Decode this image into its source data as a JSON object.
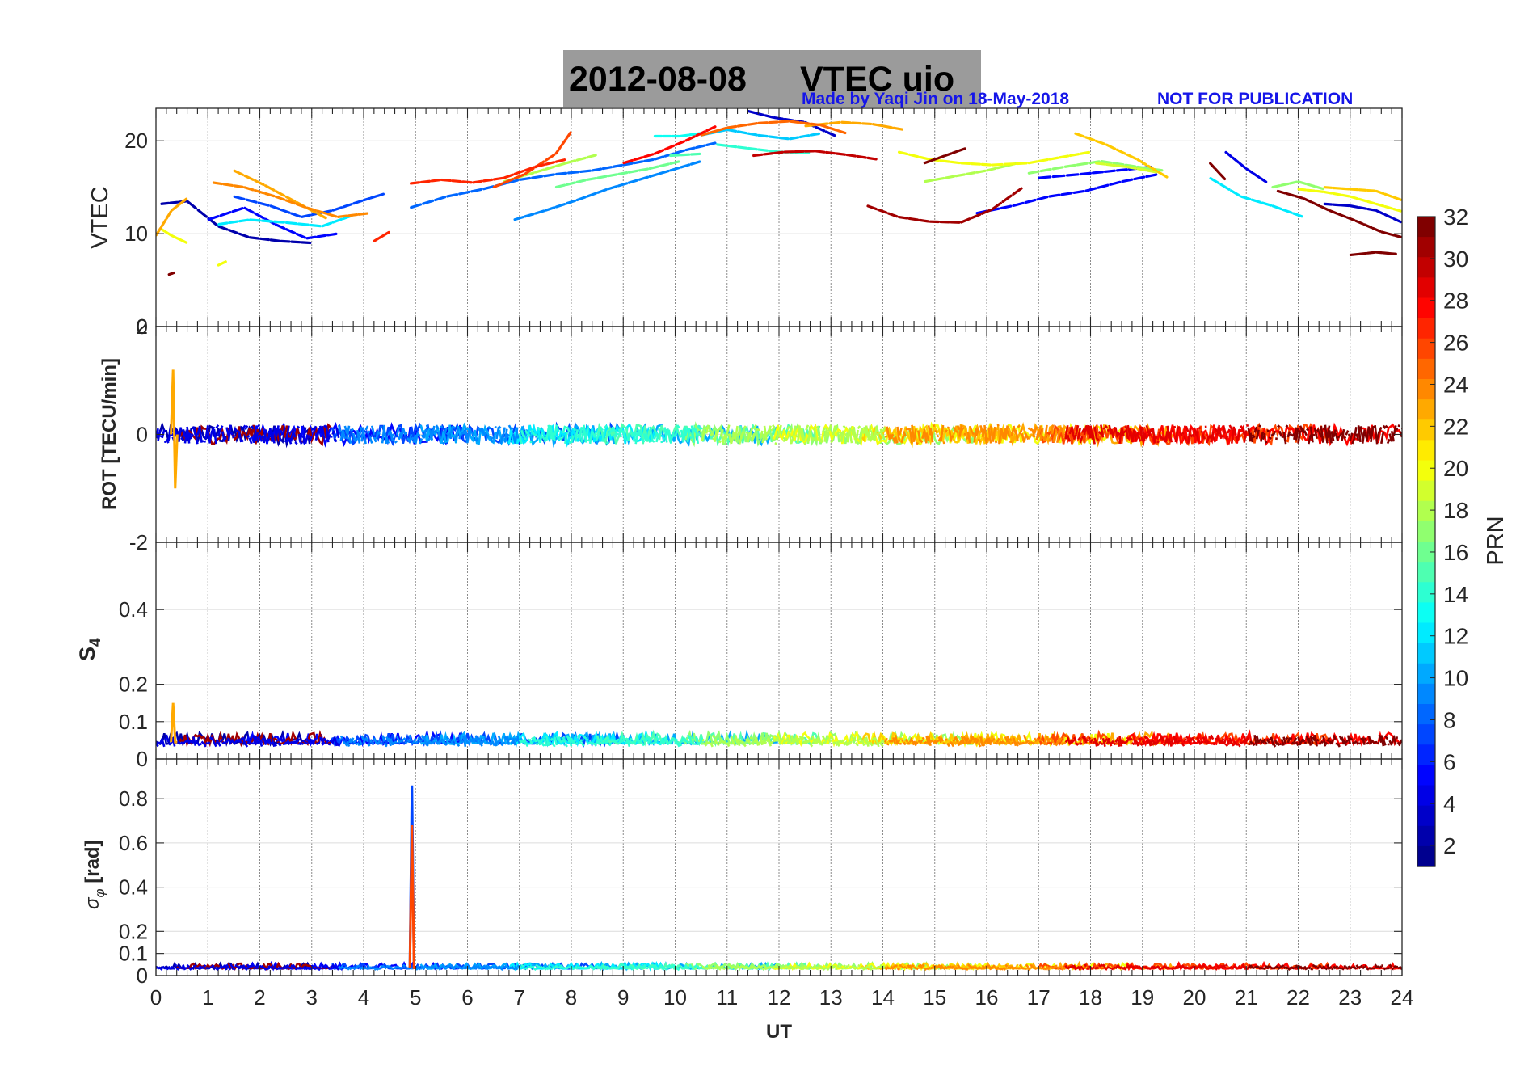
{
  "title": {
    "date": "2012-08-08",
    "main": "VTEC  uio"
  },
  "credits": {
    "made_by": "Made by Yaqi Jin on 18-May-2018",
    "not_for_publication": "NOT FOR PUBLICATION"
  },
  "chart_data": {
    "type": "line",
    "x_label": "UT",
    "x_range": [
      0,
      24
    ],
    "x_ticks": [
      "0",
      "1",
      "2",
      "3",
      "4",
      "5",
      "6",
      "7",
      "8",
      "9",
      "10",
      "11",
      "12",
      "13",
      "14",
      "15",
      "16",
      "17",
      "18",
      "19",
      "20",
      "21",
      "22",
      "23",
      "24"
    ],
    "grid": true,
    "colorbar": {
      "label": "PRN",
      "range": [
        1,
        32
      ],
      "ticks": [
        "2",
        "4",
        "6",
        "8",
        "10",
        "12",
        "14",
        "16",
        "18",
        "20",
        "22",
        "24",
        "26",
        "28",
        "30",
        "32"
      ],
      "placement": "right",
      "colormap": [
        "#00008f",
        "#0000ff",
        "#0080ff",
        "#00ffff",
        "#80ff80",
        "#ffff00",
        "#ff8000",
        "#ff0000",
        "#800000"
      ]
    },
    "panels": [
      {
        "id": "vtec",
        "ylabel": "VTEC",
        "ylim": [
          0,
          23.5
        ],
        "yticks": [
          "0",
          "10",
          "20"
        ],
        "series": [
          {
            "prn": 2,
            "x": [
              0.1,
              0.6,
              1.2,
              1.8,
              2.4,
              3.0
            ],
            "y": [
              13.2,
              13.5,
              10.8,
              9.6,
              9.2,
              9.0
            ]
          },
          {
            "prn": 3,
            "x": [
              11.4,
              11.9,
              12.5,
              13.1
            ],
            "y": [
              23.2,
              22.5,
              22.0,
              20.5
            ]
          },
          {
            "prn": 5,
            "x": [
              1.0,
              1.7,
              2.3,
              2.9,
              3.5
            ],
            "y": [
              11.5,
              12.8,
              11.0,
              9.5,
              10.0
            ]
          },
          {
            "prn": 5,
            "x": [
              15.8,
              16.5,
              17.2,
              17.9,
              18.6,
              19.3
            ],
            "y": [
              12.2,
              13.0,
              14.0,
              14.6,
              15.6,
              16.4
            ]
          },
          {
            "prn": 5,
            "x": [
              17.0,
              17.8,
              18.5,
              19.2
            ],
            "y": [
              16.0,
              16.4,
              16.8,
              17.2
            ]
          },
          {
            "prn": 4,
            "x": [
              20.6,
              21.0,
              21.4
            ],
            "y": [
              18.8,
              17.0,
              15.5
            ]
          },
          {
            "prn": 3,
            "x": [
              22.5,
              23.0,
              23.5,
              24.0
            ],
            "y": [
              13.2,
              13.0,
              12.5,
              11.2
            ]
          },
          {
            "prn": 7,
            "x": [
              1.5,
              2.2,
              2.8,
              3.4,
              4.0,
              4.4
            ],
            "y": [
              14.0,
              13.0,
              11.8,
              12.5,
              13.6,
              14.3
            ]
          },
          {
            "prn": 8,
            "x": [
              4.9,
              5.6,
              6.3,
              7.0,
              7.7,
              8.4,
              9.0,
              9.6,
              10.2,
              10.8
            ],
            "y": [
              12.8,
              14.0,
              14.8,
              15.8,
              16.4,
              16.8,
              17.4,
              18.0,
              19.0,
              19.8
            ]
          },
          {
            "prn": 9,
            "x": [
              6.9,
              7.5,
              8.1,
              8.7,
              9.3,
              9.9,
              10.5
            ],
            "y": [
              11.5,
              12.5,
              13.6,
              14.8,
              15.8,
              16.8,
              17.8
            ]
          },
          {
            "prn": 11,
            "x": [
              10.5,
              11.0,
              11.6,
              12.2,
              12.8
            ],
            "y": [
              20.6,
              21.2,
              20.6,
              20.2,
              20.8
            ]
          },
          {
            "prn": 12,
            "x": [
              1.2,
              1.8,
              2.5,
              3.2,
              3.8
            ],
            "y": [
              11.0,
              11.5,
              11.2,
              10.8,
              12.0
            ]
          },
          {
            "prn": 12,
            "x": [
              20.3,
              20.9,
              21.5,
              22.1
            ],
            "y": [
              16.0,
              14.0,
              13.0,
              11.8
            ]
          },
          {
            "prn": 13,
            "x": [
              9.6,
              10.1,
              10.6
            ],
            "y": [
              20.5,
              20.5,
              20.9
            ]
          },
          {
            "prn": 14,
            "x": [
              10.8,
              11.4,
              12.0,
              12.6
            ],
            "y": [
              19.6,
              19.2,
              18.8,
              18.7
            ]
          },
          {
            "prn": 15,
            "x": [
              9.9,
              10.5
            ],
            "y": [
              18.4,
              18.6
            ]
          },
          {
            "prn": 16,
            "x": [
              7.7,
              8.3,
              8.9,
              9.5,
              10.1
            ],
            "y": [
              15.0,
              15.8,
              16.4,
              17.0,
              17.8
            ]
          },
          {
            "prn": 17,
            "x": [
              16.8,
              17.5,
              18.2,
              18.9,
              19.4
            ],
            "y": [
              16.5,
              17.2,
              17.8,
              17.2,
              16.8
            ]
          },
          {
            "prn": 17,
            "x": [
              21.5,
              22.0,
              22.5
            ],
            "y": [
              15.0,
              15.6,
              14.8
            ]
          },
          {
            "prn": 18,
            "x": [
              14.8,
              15.4,
              16.0,
              16.6
            ],
            "y": [
              15.6,
              16.2,
              16.8,
              17.6
            ]
          },
          {
            "prn": 18,
            "x": [
              6.7,
              7.3,
              7.9,
              8.5
            ],
            "y": [
              15.6,
              16.6,
              17.6,
              18.5
            ]
          },
          {
            "prn": 20,
            "x": [
              14.3,
              14.9,
              15.5,
              16.1,
              16.8,
              17.4,
              18.0
            ],
            "y": [
              18.8,
              18.0,
              17.6,
              17.4,
              17.6,
              18.2,
              18.8
            ]
          },
          {
            "prn": 20,
            "x": [
              22.0,
              22.5,
              23.0,
              23.5,
              24.0
            ],
            "y": [
              14.8,
              14.5,
              14.0,
              13.2,
              12.4
            ]
          },
          {
            "prn": 19,
            "x": [
              18.1,
              18.7,
              19.3
            ],
            "y": [
              17.6,
              17.2,
              16.6
            ]
          },
          {
            "prn": 20,
            "x": [
              0.1,
              0.3,
              0.6
            ],
            "y": [
              10.5,
              9.8,
              9.0
            ]
          },
          {
            "prn": 20,
            "x": [
              1.2,
              1.35
            ],
            "y": [
              6.6,
              7.0
            ]
          },
          {
            "prn": 23,
            "x": [
              0.0,
              0.3,
              0.6
            ],
            "y": [
              9.8,
              12.5,
              13.8
            ]
          },
          {
            "prn": 23,
            "x": [
              1.5,
              2.1,
              2.7,
              3.3
            ],
            "y": [
              16.8,
              15.2,
              13.4,
              11.6
            ]
          },
          {
            "prn": 23,
            "x": [
              12.5,
              13.2,
              13.8,
              14.4
            ],
            "y": [
              21.6,
              22.0,
              21.8,
              21.2
            ]
          },
          {
            "prn": 22,
            "x": [
              17.7,
              18.3,
              18.9,
              19.5
            ],
            "y": [
              20.8,
              19.6,
              18.0,
              16.0
            ]
          },
          {
            "prn": 22,
            "x": [
              22.5,
              23.0,
              23.5,
              24.0
            ],
            "y": [
              15.0,
              14.8,
              14.6,
              13.6
            ]
          },
          {
            "prn": 24,
            "x": [
              1.1,
              1.7,
              2.3,
              2.9,
              3.5,
              4.1
            ],
            "y": [
              15.5,
              15.0,
              14.0,
              12.8,
              11.8,
              12.2
            ]
          },
          {
            "prn": 25,
            "x": [
              10.5,
              11.0,
              11.6,
              12.2,
              12.8,
              13.3
            ],
            "y": [
              20.6,
              21.4,
              21.9,
              22.1,
              21.7,
              20.8
            ]
          },
          {
            "prn": 26,
            "x": [
              6.5,
              7.1,
              7.7,
              8.0
            ],
            "y": [
              15.0,
              16.4,
              18.6,
              21.0
            ]
          },
          {
            "prn": 27,
            "x": [
              4.2,
              4.5
            ],
            "y": [
              9.2,
              10.2
            ]
          },
          {
            "prn": 27,
            "x": [
              4.9,
              5.5,
              6.1,
              6.7,
              7.3,
              7.9
            ],
            "y": [
              15.4,
              15.8,
              15.5,
              16.0,
              17.2,
              18.0
            ]
          },
          {
            "prn": 28,
            "x": [
              9.0,
              9.6,
              10.2,
              10.8
            ],
            "y": [
              17.6,
              18.6,
              20.0,
              21.6
            ]
          },
          {
            "prn": 30,
            "x": [
              11.5,
              12.1,
              12.7,
              13.3,
              13.9
            ],
            "y": [
              18.4,
              18.8,
              18.9,
              18.5,
              18.0
            ]
          },
          {
            "prn": 31,
            "x": [
              13.7,
              14.3,
              14.9,
              15.5,
              16.1,
              16.7
            ],
            "y": [
              13.0,
              11.8,
              11.3,
              11.2,
              12.6,
              15.0
            ]
          },
          {
            "prn": 32,
            "x": [
              0.25,
              0.35
            ],
            "y": [
              5.6,
              5.8
            ]
          },
          {
            "prn": 32,
            "x": [
              14.8,
              15.2,
              15.6
            ],
            "y": [
              17.6,
              18.4,
              19.2
            ]
          },
          {
            "prn": 32,
            "x": [
              21.6,
              22.1,
              22.6,
              23.1,
              23.6,
              24.0
            ],
            "y": [
              14.6,
              13.8,
              12.5,
              11.4,
              10.2,
              9.6
            ]
          },
          {
            "prn": 32,
            "x": [
              23.0,
              23.5,
              23.9
            ],
            "y": [
              7.7,
              8.0,
              7.8
            ]
          },
          {
            "prn": 32,
            "x": [
              20.3,
              20.6
            ],
            "y": [
              17.6,
              15.8
            ]
          }
        ]
      },
      {
        "id": "rot",
        "ylabel": "ROT [TECU/min]",
        "ylim": [
          -2,
          2
        ],
        "yticks": [
          "-2",
          "0",
          "2"
        ],
        "baseline": 0,
        "noise_amplitude": 0.18,
        "notable_excursions": [
          {
            "x": 0.35,
            "max": 1.2,
            "min": -1.0,
            "prn": 23
          }
        ]
      },
      {
        "id": "s4",
        "ylabel_main": "S",
        "ylabel_sub": "4",
        "ylim": [
          0,
          0.58
        ],
        "yticks": [
          "0",
          "0.1",
          "0.2",
          "0.4"
        ],
        "baseline": 0.045,
        "noise_amplitude": 0.025,
        "notable_excursions": [
          {
            "x": 0.35,
            "max": 0.15,
            "prn": 23
          }
        ]
      },
      {
        "id": "sigma_phi",
        "ylabel": "σ_φ [rad]",
        "ylim": [
          0,
          0.98
        ],
        "yticks": [
          "0",
          "0.1",
          "0.2",
          "0.4",
          "0.6",
          "0.8"
        ],
        "baseline": 0.035,
        "noise_amplitude": 0.02,
        "notable_excursions": [
          {
            "x": 4.95,
            "max": 0.86,
            "prn": 7
          },
          {
            "x": 4.95,
            "max": 0.68,
            "prn": 26
          }
        ]
      }
    ]
  }
}
